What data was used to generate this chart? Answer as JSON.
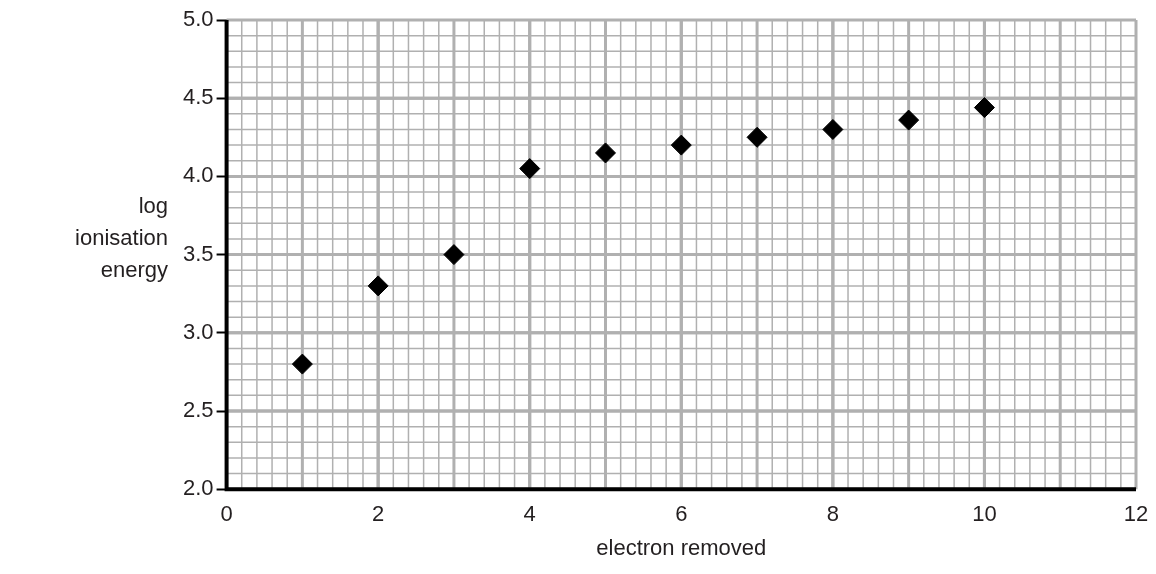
{
  "chart_data": {
    "type": "scatter",
    "xlabel": "electron removed",
    "ylabel": "log ionisation energy",
    "x": [
      1,
      2,
      3,
      4,
      5,
      6,
      7,
      8,
      9,
      10
    ],
    "series": [
      {
        "color": "#000000",
        "values": [
          2.8,
          3.3,
          3.5,
          4.05,
          4.15,
          4.2,
          4.25,
          4.3,
          4.36,
          4.44
        ]
      }
    ],
    "xlim": [
      0,
      12
    ],
    "xticks": [
      0,
      2,
      4,
      6,
      8,
      10,
      12
    ],
    "ylim": [
      2.0,
      5.0
    ],
    "yticks": [
      {
        "value": 2.0,
        "label": "2.0"
      },
      {
        "value": 2.5,
        "label": "2.5"
      },
      {
        "value": 3.0,
        "label": "3.0"
      },
      {
        "value": 3.5,
        "label": "3.5"
      },
      {
        "value": 4.0,
        "label": "4.0"
      },
      {
        "value": 4.5,
        "label": "4.5"
      },
      {
        "value": 5.0,
        "label": "5.0"
      }
    ],
    "grid": true,
    "marker": "diamond"
  }
}
